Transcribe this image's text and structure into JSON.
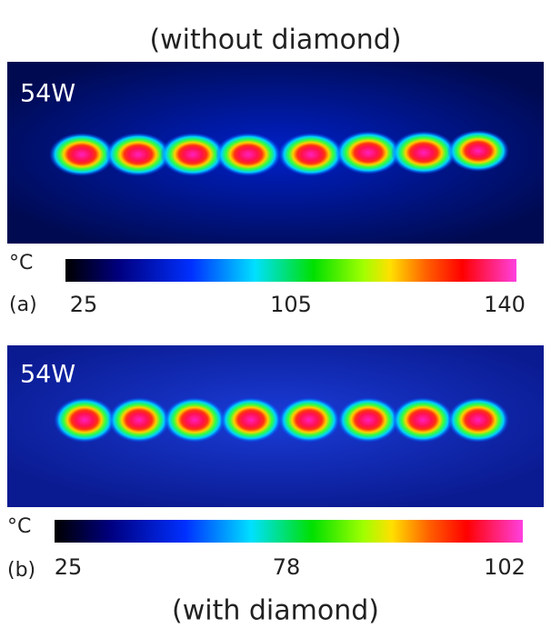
{
  "top_caption": "(without diamond)",
  "panels": [
    {
      "label": "(a)",
      "power": "54W",
      "unit": "°C",
      "ticks": [
        25,
        105,
        140
      ]
    },
    {
      "label": "(b)",
      "power": "54W",
      "unit": "°C",
      "ticks": [
        25,
        78,
        102
      ]
    }
  ],
  "bottom_caption": "(with diamond)"
}
